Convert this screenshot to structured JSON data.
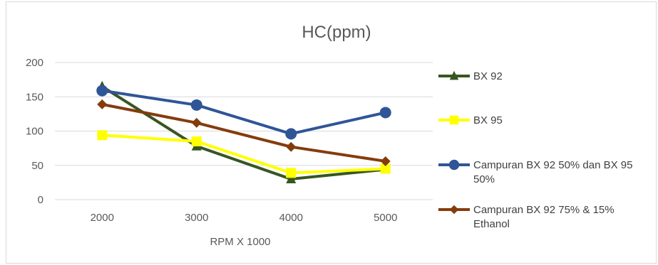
{
  "chart_data": {
    "type": "line",
    "title": "HC(ppm)",
    "xlabel": "RPM X 1000",
    "ylabel": "",
    "categories": [
      "2000",
      "3000",
      "4000",
      "5000"
    ],
    "ylim": [
      0,
      200
    ],
    "yticks": [
      0,
      50,
      100,
      150,
      200
    ],
    "grid": true,
    "legend_position": "right",
    "series": [
      {
        "name": "BX 92",
        "values": [
          165,
          78,
          30,
          44
        ],
        "color": "#375623",
        "marker": "triangle"
      },
      {
        "name": "BX 95",
        "values": [
          94,
          85,
          39,
          45
        ],
        "color": "#ffff00",
        "marker": "square"
      },
      {
        "name": "Campuran BX 92 50% dan BX 95 50%",
        "legend_lines": [
          "Campuran BX 92 50% dan BX 95",
          "50%"
        ],
        "values": [
          159,
          138,
          96,
          127
        ],
        "color": "#2f5597",
        "marker": "circle"
      },
      {
        "name": "Campuran BX 92 75% & 15% Ethanol",
        "legend_lines": [
          "Campuran BX 92 75% & 15%",
          "Ethanol"
        ],
        "values": [
          139,
          112,
          77,
          56
        ],
        "color": "#843c0c",
        "marker": "diamond"
      }
    ]
  }
}
